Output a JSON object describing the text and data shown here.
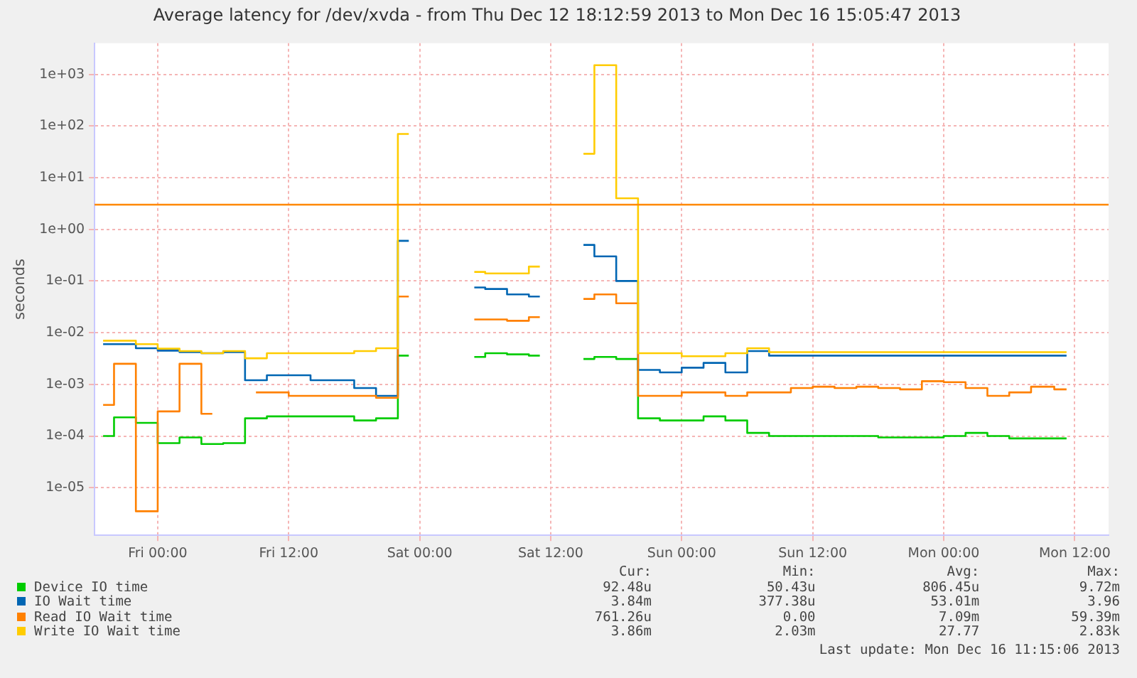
{
  "chart_data": {
    "type": "step",
    "title": "Average latency for /dev/xvda - from Thu Dec 12 18:12:59 2013 to Mon Dec 16 15:05:47 2013",
    "ylabel": "seconds",
    "x": [
      "2013-12-12T19:00",
      "2013-12-12T21:00",
      "2013-12-12T23:00",
      "2013-12-13T01:00",
      "2013-12-13T03:00",
      "2013-12-13T05:00",
      "2013-12-13T07:00",
      "2013-12-13T09:00",
      "2013-12-13T11:00",
      "2013-12-13T13:00",
      "2013-12-13T15:00",
      "2013-12-13T17:00",
      "2013-12-13T19:00",
      "2013-12-13T21:00",
      "2013-12-13T23:00",
      "2013-12-14T01:00",
      "2013-12-14T03:00",
      "2013-12-14T05:00",
      "2013-12-14T07:00",
      "2013-12-14T09:00",
      "2013-12-14T11:00",
      "2013-12-14T13:00",
      "2013-12-14T15:00",
      "2013-12-14T17:00",
      "2013-12-14T19:00",
      "2013-12-14T21:00",
      "2013-12-14T23:00",
      "2013-12-15T01:00",
      "2013-12-15T03:00",
      "2013-12-15T05:00",
      "2013-12-15T07:00",
      "2013-12-15T09:00",
      "2013-12-15T11:00",
      "2013-12-15T13:00",
      "2013-12-15T15:00",
      "2013-12-15T17:00",
      "2013-12-15T19:00",
      "2013-12-15T21:00",
      "2013-12-15T23:00",
      "2013-12-16T01:00",
      "2013-12-16T03:00",
      "2013-12-16T05:00",
      "2013-12-16T07:00",
      "2013-12-16T09:00",
      "2013-12-16T11:15"
    ],
    "series": [
      {
        "name": "Device IO time",
        "color": "#00cc00",
        "values": [
          0.0001,
          0.00023,
          0.00018,
          7.3e-05,
          9.4e-05,
          7e-05,
          7.3e-05,
          0.00022,
          0.00024,
          0.00024,
          0.00024,
          0.00024,
          0.0002,
          0.00022,
          0.0036,
          null,
          null,
          0.0034,
          0.004,
          0.0038,
          0.0036,
          null,
          0.0031,
          0.0034,
          0.0031,
          0.00022,
          0.0002,
          0.0002,
          0.00024,
          0.0002,
          0.000115,
          0.0001,
          0.0001,
          0.0001,
          0.0001,
          0.0001,
          9.4e-05,
          9.4e-05,
          9.4e-05,
          0.0001,
          0.000115,
          0.0001,
          9e-05,
          9e-05,
          9e-05
        ]
      },
      {
        "name": "IO Wait time",
        "color": "#0066b3",
        "values": [
          0.006,
          0.006,
          0.005,
          0.0045,
          0.0042,
          0.004,
          0.0042,
          0.0012,
          0.0015,
          0.0015,
          0.0012,
          0.0012,
          0.00085,
          0.0006,
          0.6,
          null,
          null,
          0.075,
          0.07,
          0.055,
          0.05,
          null,
          0.5,
          0.3,
          0.1,
          0.0019,
          0.0017,
          0.0021,
          0.0026,
          0.0017,
          0.0044,
          0.0036,
          0.0036,
          0.0036,
          0.0036,
          0.0036,
          0.0036,
          0.0036,
          0.0036,
          0.0036,
          0.0036,
          0.0036,
          0.0036,
          0.0036,
          0.0036
        ]
      },
      {
        "name": "Read IO Wait time",
        "color": "#ff8000",
        "values": [
          0.0004,
          0.0025,
          3.5e-06,
          0.0003,
          0.0025,
          0.00027,
          null,
          0.0007,
          0.0007,
          0.0006,
          0.0006,
          0.0006,
          0.0006,
          0.00055,
          0.05,
          null,
          null,
          0.018,
          0.018,
          0.017,
          0.02,
          null,
          0.045,
          0.055,
          0.037,
          0.0006,
          0.0006,
          0.0007,
          0.0007,
          0.0006,
          0.0007,
          0.0007,
          0.00085,
          0.0009,
          0.00085,
          0.0009,
          0.00085,
          0.0008,
          0.00115,
          0.0011,
          0.00085,
          0.0006,
          0.0007,
          0.0009,
          0.0008
        ]
      },
      {
        "name": "Write IO Wait time",
        "color": "#ffcc00",
        "values": [
          0.007,
          0.007,
          0.006,
          0.0049,
          0.0044,
          0.004,
          0.0044,
          0.0032,
          0.004,
          0.004,
          0.004,
          0.004,
          0.0044,
          0.005,
          70,
          null,
          null,
          0.15,
          0.14,
          0.14,
          0.19,
          null,
          29,
          1500,
          4,
          0.004,
          0.004,
          0.0035,
          0.0035,
          0.004,
          0.005,
          0.0042,
          0.0042,
          0.0042,
          0.0042,
          0.0042,
          0.0042,
          0.0042,
          0.0042,
          0.0042,
          0.0042,
          0.0042,
          0.0042,
          0.0042,
          0.0042
        ]
      }
    ],
    "log": "y",
    "ylim": [
      1.2e-06,
      4000
    ],
    "yticks": [
      {
        "value": 1e-05,
        "label": "1e-05"
      },
      {
        "value": 0.0001,
        "label": "1e-04"
      },
      {
        "value": 0.001,
        "label": "1e-03"
      },
      {
        "value": 0.01,
        "label": "1e-02"
      },
      {
        "value": 0.1,
        "label": "1e-01"
      },
      {
        "value": 1,
        "label": "1e+00"
      },
      {
        "value": 10,
        "label": "1e+01"
      },
      {
        "value": 100,
        "label": "1e+02"
      },
      {
        "value": 1000,
        "label": "1e+03"
      }
    ],
    "xlim": [
      "2013-12-12T18:13",
      "2013-12-16T15:06"
    ],
    "xticks": [
      {
        "value": "2013-12-13T00:00",
        "label": "Fri 00:00"
      },
      {
        "value": "2013-12-13T12:00",
        "label": "Fri 12:00"
      },
      {
        "value": "2013-12-14T00:00",
        "label": "Sat 00:00"
      },
      {
        "value": "2013-12-14T12:00",
        "label": "Sat 12:00"
      },
      {
        "value": "2013-12-15T00:00",
        "label": "Sun 00:00"
      },
      {
        "value": "2013-12-15T12:00",
        "label": "Sun 12:00"
      },
      {
        "value": "2013-12-16T00:00",
        "label": "Mon 00:00"
      },
      {
        "value": "2013-12-16T12:00",
        "label": "Mon 12:00"
      }
    ],
    "ref_lines": [
      {
        "axis": "y",
        "value": 3,
        "color": "#ff8800"
      }
    ],
    "grid": true,
    "legend": "bottom",
    "marker": "none",
    "line_style": "solid",
    "annotations": [
      "Cur:",
      "Min:",
      "Avg:",
      "Max:",
      "92.48u",
      "50.43u",
      "806.45u",
      "9.72m",
      "3.84m",
      "377.38u",
      "53.01m",
      "3.96",
      "761.26u",
      "0.00",
      "7.09m",
      "59.39m",
      "3.86m",
      "2.03m",
      "27.77",
      "2.83k",
      "Last update: Mon Dec 16 11:15:06 2013"
    ]
  }
}
